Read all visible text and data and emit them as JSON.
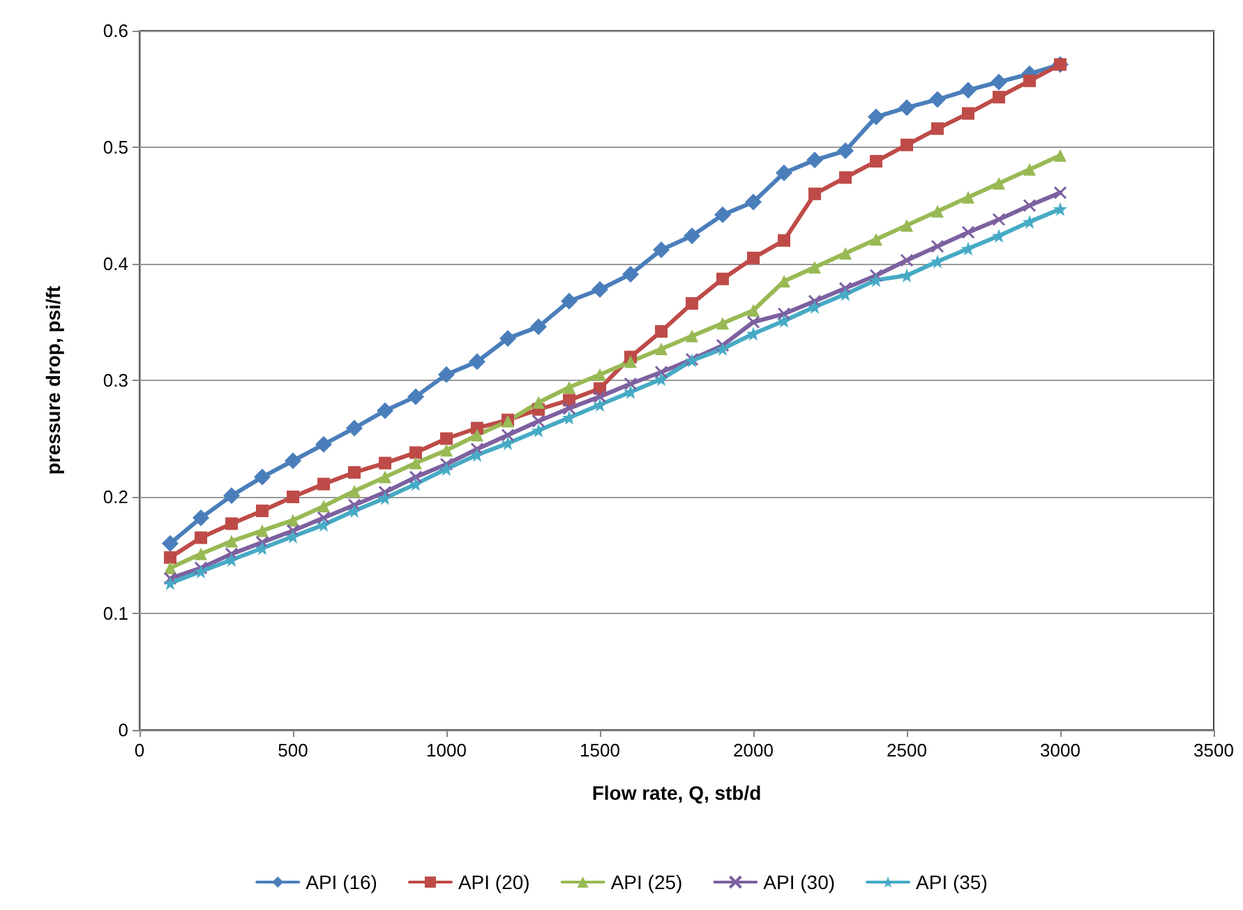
{
  "chart_data": {
    "type": "line",
    "xlabel": "Flow rate, Q, stb/d",
    "ylabel": "pressure drop, psi/ft",
    "x": [
      100,
      200,
      300,
      400,
      500,
      600,
      700,
      800,
      900,
      1000,
      1100,
      1200,
      1300,
      1400,
      1500,
      1600,
      1700,
      1800,
      1900,
      2000,
      2100,
      2200,
      2300,
      2400,
      2500,
      2600,
      2700,
      2800,
      2900,
      3000
    ],
    "series": [
      {
        "name": "API (16)",
        "color": "#4a7ebb",
        "marker": "diamond",
        "values": [
          0.16,
          0.182,
          0.201,
          0.217,
          0.231,
          0.245,
          0.259,
          0.274,
          0.286,
          0.305,
          0.316,
          0.336,
          0.346,
          0.368,
          0.378,
          0.391,
          0.412,
          0.424,
          0.442,
          0.453,
          0.478,
          0.489,
          0.497,
          0.526,
          0.534,
          0.541,
          0.549,
          0.556,
          0.563,
          0.571
        ]
      },
      {
        "name": "API (20)",
        "color": "#be4b48",
        "marker": "square",
        "values": [
          0.148,
          0.165,
          0.177,
          0.188,
          0.2,
          0.211,
          0.221,
          0.229,
          0.238,
          0.25,
          0.259,
          0.266,
          0.275,
          0.283,
          0.293,
          0.32,
          0.342,
          0.366,
          0.387,
          0.405,
          0.42,
          0.46,
          0.474,
          0.488,
          0.502,
          0.516,
          0.529,
          0.543,
          0.557,
          0.571
        ]
      },
      {
        "name": "API (25)",
        "color": "#98b954",
        "marker": "triangle",
        "values": [
          0.139,
          0.151,
          0.162,
          0.171,
          0.18,
          0.192,
          0.205,
          0.217,
          0.229,
          0.24,
          0.253,
          0.265,
          0.281,
          0.294,
          0.305,
          0.316,
          0.327,
          0.338,
          0.349,
          0.36,
          0.385,
          0.397,
          0.409,
          0.421,
          0.433,
          0.445,
          0.457,
          0.469,
          0.481,
          0.493
        ]
      },
      {
        "name": "API (30)",
        "color": "#7d60a0",
        "marker": "cross",
        "values": [
          0.13,
          0.139,
          0.151,
          0.161,
          0.171,
          0.182,
          0.193,
          0.204,
          0.217,
          0.228,
          0.241,
          0.253,
          0.265,
          0.276,
          0.286,
          0.297,
          0.307,
          0.318,
          0.33,
          0.35,
          0.357,
          0.368,
          0.379,
          0.39,
          0.403,
          0.415,
          0.427,
          0.438,
          0.45,
          0.461
        ]
      },
      {
        "name": "API (35)",
        "color": "#46aac5",
        "marker": "star",
        "values": [
          0.126,
          0.136,
          0.146,
          0.156,
          0.166,
          0.176,
          0.188,
          0.199,
          0.211,
          0.224,
          0.236,
          0.246,
          0.257,
          0.268,
          0.279,
          0.29,
          0.301,
          0.317,
          0.327,
          0.34,
          0.351,
          0.363,
          0.374,
          0.386,
          0.39,
          0.402,
          0.413,
          0.424,
          0.436,
          0.447
        ]
      }
    ],
    "xlim": [
      0,
      3500
    ],
    "xticks": [
      0,
      500,
      1000,
      1500,
      2000,
      2500,
      3000,
      3500
    ],
    "ylim": [
      0,
      0.6
    ],
    "yticks": [
      0,
      0.1,
      0.2,
      0.3,
      0.4,
      0.5,
      0.6
    ],
    "grid": "y",
    "legend": "bottom",
    "line_style": "solid"
  }
}
